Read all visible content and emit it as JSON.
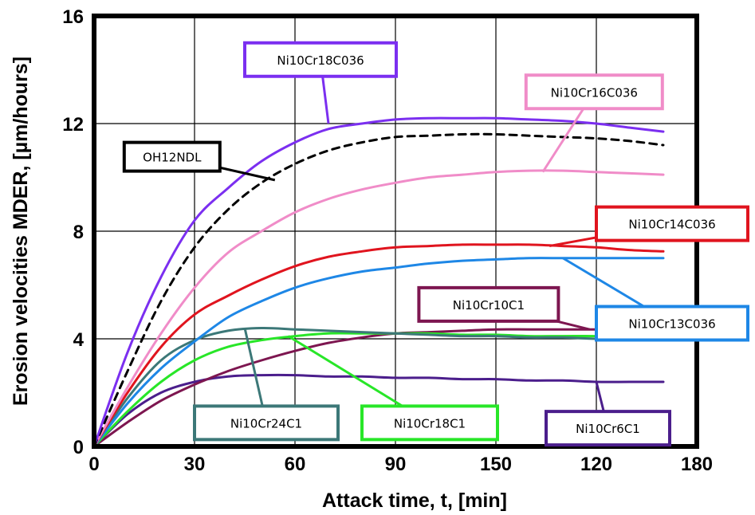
{
  "chart_data": {
    "type": "line",
    "title": "",
    "xlabel": "Attack time, t,   [min]",
    "ylabel": "Erosion velocities MDER,  [µm/hours]",
    "x_tick_labels": [
      "0",
      "30",
      "60",
      "90",
      "150",
      "120",
      "180"
    ],
    "y_tick_labels": [
      "0",
      "4",
      "8",
      "12",
      "16"
    ],
    "xlim": [
      0,
      180
    ],
    "ylim": [
      0,
      16
    ],
    "grid": true,
    "legend": "callout boxes",
    "series": [
      {
        "name": "Ni10Cr18C036",
        "color": "#7b2ff0",
        "dashed": false,
        "x": [
          0,
          10,
          20,
          30,
          40,
          50,
          60,
          70,
          80,
          90,
          100,
          110,
          120,
          130,
          140,
          150,
          160,
          170
        ],
        "y": [
          0,
          3.5,
          6.3,
          8.4,
          9.6,
          10.6,
          11.3,
          11.8,
          12.0,
          12.15,
          12.2,
          12.2,
          12.2,
          12.15,
          12.1,
          12.0,
          11.85,
          11.7
        ]
      },
      {
        "name": "OH12NDL",
        "color": "#000000",
        "dashed": true,
        "x": [
          0,
          10,
          20,
          30,
          40,
          50,
          60,
          70,
          80,
          90,
          100,
          110,
          120,
          130,
          140,
          150,
          160,
          170
        ],
        "y": [
          0,
          2.8,
          5.4,
          7.4,
          8.8,
          9.8,
          10.5,
          11.0,
          11.3,
          11.5,
          11.55,
          11.6,
          11.6,
          11.55,
          11.5,
          11.45,
          11.35,
          11.2
        ]
      },
      {
        "name": "Ni10Cr16C036",
        "color": "#f08cc8",
        "dashed": false,
        "x": [
          0,
          10,
          20,
          30,
          40,
          50,
          60,
          70,
          80,
          90,
          100,
          110,
          120,
          130,
          140,
          150,
          160,
          170
        ],
        "y": [
          0,
          2.2,
          4.2,
          5.9,
          7.2,
          8.0,
          8.7,
          9.2,
          9.55,
          9.8,
          10.0,
          10.1,
          10.2,
          10.25,
          10.25,
          10.2,
          10.15,
          10.1
        ]
      },
      {
        "name": "Ni10Cr14C036",
        "color": "#e0141e",
        "dashed": false,
        "x": [
          0,
          10,
          20,
          30,
          40,
          50,
          60,
          70,
          80,
          90,
          100,
          110,
          120,
          130,
          140,
          150,
          160,
          170
        ],
        "y": [
          0,
          2.0,
          3.7,
          4.9,
          5.6,
          6.2,
          6.7,
          7.05,
          7.25,
          7.4,
          7.45,
          7.5,
          7.5,
          7.5,
          7.45,
          7.4,
          7.3,
          7.25
        ]
      },
      {
        "name": "Ni10Cr13C036",
        "color": "#1e87e6",
        "dashed": false,
        "x": [
          0,
          10,
          20,
          30,
          40,
          50,
          60,
          70,
          80,
          90,
          100,
          110,
          120,
          130,
          140,
          150,
          160,
          170
        ],
        "y": [
          0,
          1.6,
          2.9,
          3.9,
          4.8,
          5.4,
          5.9,
          6.25,
          6.5,
          6.65,
          6.8,
          6.9,
          6.95,
          7.0,
          7.0,
          7.0,
          7.0,
          7.0
        ]
      },
      {
        "name": "Ni10Cr10C1",
        "color": "#7d1650",
        "dashed": false,
        "x": [
          0,
          10,
          20,
          30,
          40,
          50,
          60,
          70,
          80,
          90,
          100,
          110,
          120,
          130,
          140,
          150,
          160,
          170
        ],
        "y": [
          0,
          0.9,
          1.7,
          2.3,
          2.8,
          3.2,
          3.55,
          3.85,
          4.05,
          4.2,
          4.25,
          4.3,
          4.35,
          4.35,
          4.35,
          4.35,
          4.35,
          4.35
        ]
      },
      {
        "name": "Ni10Cr24C1",
        "color": "#3c7878",
        "dashed": false,
        "x": [
          0,
          10,
          20,
          30,
          40,
          50,
          60,
          70,
          80,
          90,
          100,
          110,
          120,
          130,
          140,
          150,
          160,
          170
        ],
        "y": [
          0,
          1.8,
          3.2,
          3.95,
          4.3,
          4.4,
          4.35,
          4.3,
          4.25,
          4.2,
          4.15,
          4.1,
          4.1,
          4.05,
          4.05,
          4.0,
          4.0,
          4.0
        ]
      },
      {
        "name": "Ni10Cr18C1",
        "color": "#28e628",
        "dashed": false,
        "x": [
          0,
          10,
          20,
          30,
          40,
          50,
          60,
          70,
          80,
          90,
          100,
          110,
          120,
          130,
          140,
          150,
          160,
          170
        ],
        "y": [
          0,
          1.3,
          2.4,
          3.2,
          3.7,
          3.95,
          4.1,
          4.2,
          4.2,
          4.2,
          4.2,
          4.15,
          4.15,
          4.1,
          4.1,
          4.1,
          4.05,
          4.05
        ]
      },
      {
        "name": "Ni10Cr6C1",
        "color": "#4b1e8c",
        "dashed": false,
        "x": [
          0,
          10,
          20,
          30,
          40,
          50,
          60,
          70,
          80,
          90,
          100,
          110,
          120,
          130,
          140,
          150,
          160,
          170
        ],
        "y": [
          0,
          1.2,
          2.0,
          2.4,
          2.6,
          2.65,
          2.65,
          2.6,
          2.6,
          2.55,
          2.55,
          2.5,
          2.5,
          2.45,
          2.45,
          2.4,
          2.4,
          2.4
        ]
      }
    ]
  }
}
